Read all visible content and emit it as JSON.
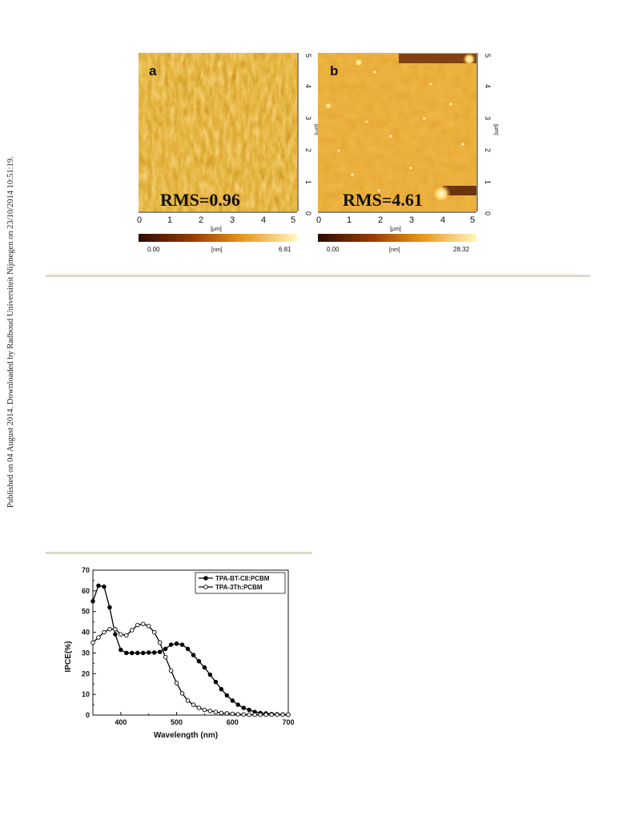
{
  "side_note": "Published on 04 August 2014. Downloaded by Radboud Universiteit Nijmegen on 23/10/2014 10:51:19.",
  "afm": {
    "panels": [
      {
        "label": "a",
        "rms": "RMS=0.96",
        "scale_min": "0.00",
        "scale_unit": "[nm]",
        "scale_max": "6.81"
      },
      {
        "label": "b",
        "rms": "RMS=4.61",
        "scale_min": "0.00",
        "scale_unit": "[nm]",
        "scale_max": "28.32"
      }
    ],
    "axis_unit": "[µm]",
    "ticks": [
      "0",
      "1",
      "2",
      "3",
      "4",
      "5"
    ]
  },
  "chart_data": {
    "type": "line",
    "xlabel": "Wavelength (nm)",
    "ylabel": "IPCE(%)",
    "xlim": [
      350,
      700
    ],
    "ylim": [
      0,
      70
    ],
    "xticks": [
      400,
      500,
      600,
      700
    ],
    "yticks": [
      0,
      10,
      20,
      30,
      40,
      50,
      60,
      70
    ],
    "grid": false,
    "legend_position": "top-right",
    "series": [
      {
        "name": "TPA-BT-C8:PCBM",
        "marker": "filled-circle",
        "color": "#000000",
        "x": [
          350,
          360,
          370,
          380,
          390,
          400,
          410,
          420,
          430,
          440,
          450,
          460,
          470,
          480,
          490,
          500,
          510,
          520,
          530,
          540,
          550,
          560,
          570,
          580,
          590,
          600,
          610,
          620,
          630,
          640,
          650,
          660,
          670,
          680,
          690,
          700
        ],
        "y": [
          55,
          62.5,
          62,
          52,
          39,
          31.5,
          30,
          30,
          30,
          30,
          30.2,
          30.2,
          30.5,
          32,
          34,
          34.5,
          34,
          32,
          29,
          26,
          23,
          19.5,
          16,
          12.5,
          9.5,
          7,
          5,
          3.5,
          2.5,
          1.5,
          1,
          0.8,
          0.5,
          0.4,
          0.3,
          0.2
        ]
      },
      {
        "name": "TPA-3Th:PCBM",
        "marker": "open-circle",
        "color": "#000000",
        "x": [
          350,
          360,
          370,
          380,
          390,
          400,
          410,
          420,
          430,
          440,
          450,
          460,
          470,
          480,
          490,
          500,
          510,
          520,
          530,
          540,
          550,
          560,
          570,
          580,
          590,
          600,
          610,
          620,
          630,
          640,
          650,
          660,
          670,
          680,
          690,
          700
        ],
        "y": [
          35,
          37.5,
          40,
          41.5,
          41.5,
          39,
          38.5,
          41,
          43.5,
          44,
          43,
          40,
          35,
          28,
          21.5,
          15.5,
          10.5,
          7,
          5,
          3.5,
          2.5,
          2,
          1.5,
          1,
          0.8,
          0.6,
          0.4,
          0.3,
          0.2,
          0.2,
          0.2,
          0.2,
          0.2,
          0.2,
          0.2,
          0.2
        ]
      }
    ]
  },
  "colors": {
    "rule": "#dcd9c6",
    "afm_low": "#3a1203",
    "afm_mid": "#c75f07",
    "afm_high": "#fff2a8"
  }
}
